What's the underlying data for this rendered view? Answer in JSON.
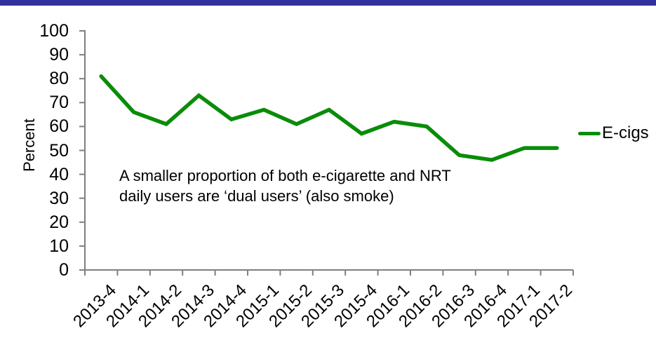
{
  "top_bar": {
    "color": "#31329b"
  },
  "chart_data": {
    "type": "line",
    "title": "",
    "ylabel": "Percent",
    "categories": [
      "2013-4",
      "2014-1",
      "2014-2",
      "2014-3",
      "2014-4",
      "2015-1",
      "2015-2",
      "2015-3",
      "2015-4",
      "2016-1",
      "2016-2",
      "2016-3",
      "2016-4",
      "2017-1",
      "2017-2"
    ],
    "series": [
      {
        "name": "E-cigs",
        "color": "#0a8c0a",
        "values": [
          81,
          66,
          61,
          73,
          63,
          67,
          61,
          67,
          57,
          62,
          60,
          48,
          46,
          51,
          51
        ]
      }
    ],
    "ylim": [
      0,
      100
    ],
    "yticks": [
      0,
      10,
      20,
      30,
      40,
      50,
      60,
      70,
      80,
      90,
      100
    ],
    "grid": false,
    "legend_position": "right",
    "axis_color": "#7f7f7f",
    "annotation": {
      "line1": "A smaller proportion of both e-cigarette and NRT",
      "line2": "daily users are ‘dual users’ (also smoke)"
    }
  }
}
